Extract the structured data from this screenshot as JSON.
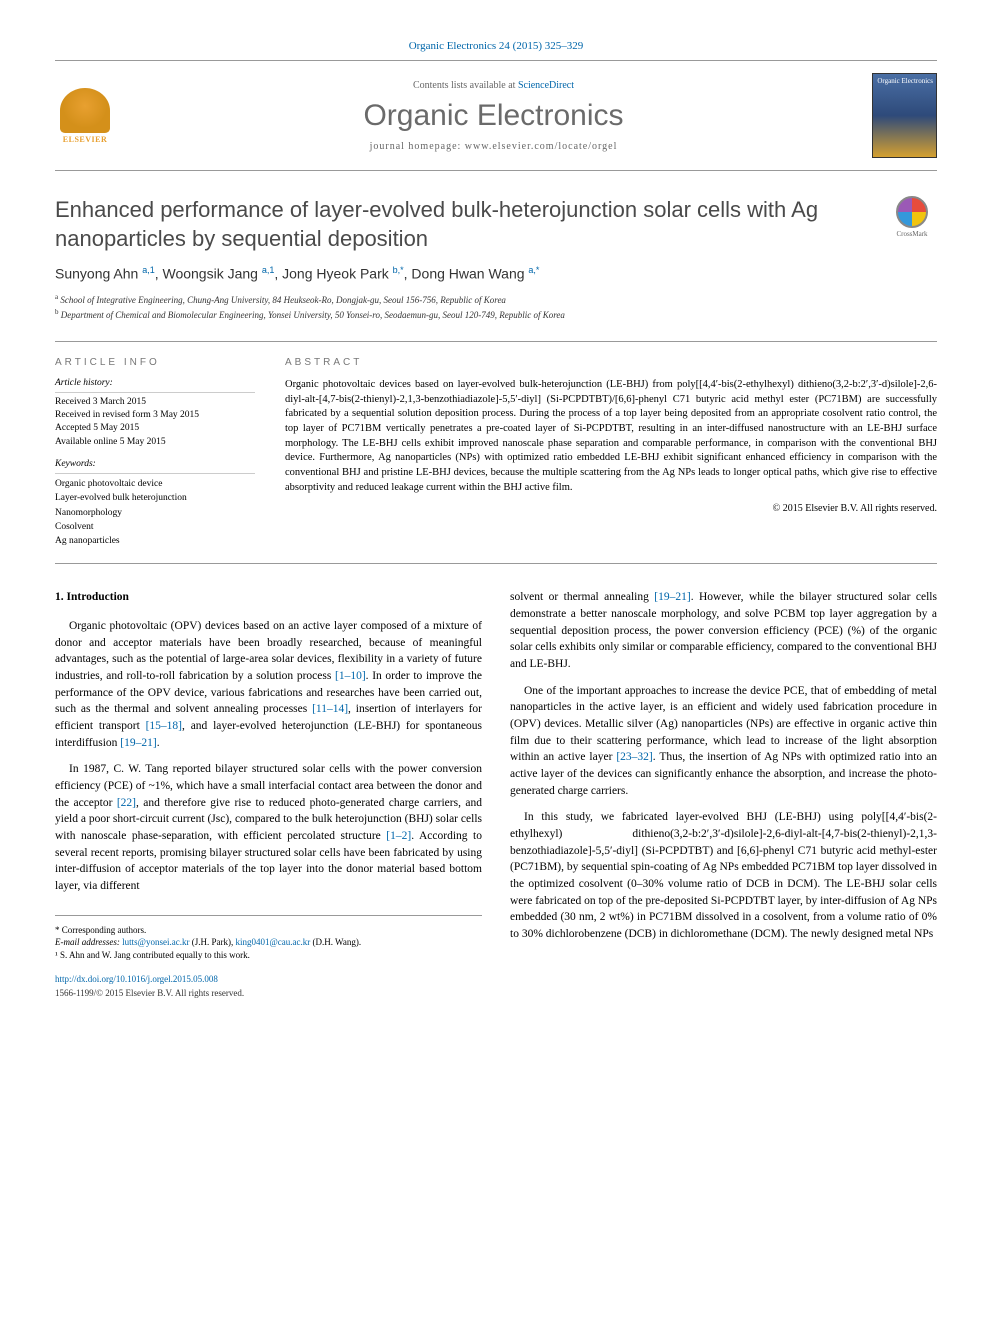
{
  "citation": "Organic Electronics 24 (2015) 325–329",
  "header": {
    "contents_prefix": "Contents lists available at ",
    "contents_link": "ScienceDirect",
    "journal_name": "Organic Electronics",
    "homepage": "journal homepage: www.elsevier.com/locate/orgel",
    "elsevier_label": "ELSEVIER",
    "cover_label": "Organic Electronics"
  },
  "crossmark": "CrossMark",
  "title": "Enhanced performance of layer-evolved bulk-heterojunction solar cells with Ag nanoparticles by sequential deposition",
  "authors_html": "Sunyong Ahn <sup>a,1</sup>, Woongsik Jang <sup>a,1</sup>, Jong Hyeok Park <sup>b,*</sup>, Dong Hwan Wang <sup>a,*</sup>",
  "affiliations": {
    "a": "School of Integrative Engineering, Chung-Ang University, 84 Heukseok-Ro, Dongjak-gu, Seoul 156-756, Republic of Korea",
    "b": "Department of Chemical and Biomolecular Engineering, Yonsei University, 50 Yonsei-ro, Seodaemun-gu, Seoul 120-749, Republic of Korea"
  },
  "info": {
    "heading": "ARTICLE INFO",
    "history_label": "Article history:",
    "history": [
      "Received 3 March 2015",
      "Received in revised form 3 May 2015",
      "Accepted 5 May 2015",
      "Available online 5 May 2015"
    ],
    "keywords_label": "Keywords:",
    "keywords": [
      "Organic photovoltaic device",
      "Layer-evolved bulk heterojunction",
      "Nanomorphology",
      "Cosolvent",
      "Ag nanoparticles"
    ]
  },
  "abstract": {
    "heading": "ABSTRACT",
    "text": "Organic photovoltaic devices based on layer-evolved bulk-heterojunction (LE-BHJ) from poly[[4,4′-bis(2-ethylhexyl) dithieno(3,2-b:2′,3′-d)silole]-2,6-diyl-alt-[4,7-bis(2-thienyl)-2,1,3-benzothiadiazole]-5,5′-diyl] (Si-PCPDTBT)/[6,6]-phenyl C71 butyric acid methyl ester (PC71BM) are successfully fabricated by a sequential solution deposition process. During the process of a top layer being deposited from an appropriate cosolvent ratio control, the top layer of PC71BM vertically penetrates a pre-coated layer of Si-PCPDTBT, resulting in an inter-diffused nanostructure with an LE-BHJ surface morphology. The LE-BHJ cells exhibit improved nanoscale phase separation and comparable performance, in comparison with the conventional BHJ device. Furthermore, Ag nanoparticles (NPs) with optimized ratio embedded LE-BHJ exhibit significant enhanced efficiency in comparison with the conventional BHJ and pristine LE-BHJ devices, because the multiple scattering from the Ag NPs leads to longer optical paths, which give rise to effective absorptivity and reduced leakage current within the BHJ active film.",
    "copyright": "© 2015 Elsevier B.V. All rights reserved."
  },
  "body": {
    "section_heading": "1. Introduction",
    "left_paragraphs": [
      "Organic photovoltaic (OPV) devices based on an active layer composed of a mixture of donor and acceptor materials have been broadly researched, because of meaningful advantages, such as the potential of large-area solar devices, flexibility in a variety of future industries, and roll-to-roll fabrication by a solution process [1–10]. In order to improve the performance of the OPV device, various fabrications and researches have been carried out, such as the thermal and solvent annealing processes [11–14], insertion of interlayers for efficient transport [15–18], and layer-evolved heterojunction (LE-BHJ) for spontaneous interdiffusion [19–21].",
      "In 1987, C. W. Tang reported bilayer structured solar cells with the power conversion efficiency (PCE) of ~1%, which have a small interfacial contact area between the donor and the acceptor [22], and therefore give rise to reduced photo-generated charge carriers, and yield a poor short-circuit current (Jsc), compared to the bulk heterojunction (BHJ) solar cells with nanoscale phase-separation, with efficient percolated structure [1–2]. According to several recent reports, promising bilayer structured solar cells have been fabricated by using inter-diffusion of acceptor materials of the top layer into the donor material based bottom layer, via different"
    ],
    "right_paragraphs": [
      "solvent or thermal annealing [19–21]. However, while the bilayer structured solar cells demonstrate a better nanoscale morphology, and solve PCBM top layer aggregation by a sequential deposition process, the power conversion efficiency (PCE) (%) of the organic solar cells exhibits only similar or comparable efficiency, compared to the conventional BHJ and LE-BHJ.",
      "One of the important approaches to increase the device PCE, that of embedding of metal nanoparticles in the active layer, is an efficient and widely used fabrication procedure in (OPV) devices. Metallic silver (Ag) nanoparticles (NPs) are effective in organic active thin film due to their scattering performance, which lead to increase of the light absorption within an active layer [23–32]. Thus, the insertion of Ag NPs with optimized ratio into an active layer of the devices can significantly enhance the absorption, and increase the photo-generated charge carriers.",
      "In this study, we fabricated layer-evolved BHJ (LE-BHJ) using poly[[4,4′-bis(2-ethylhexyl) dithieno(3,2-b:2′,3′-d)silole]-2,6-diyl-alt-[4,7-bis(2-thienyl)-2,1,3-benzothiadiazole]-5,5′-diyl] (Si-PCPDTBT) and [6,6]-phenyl C71 butyric acid methyl-ester (PC71BM), by sequential spin-coating of Ag NPs embedded PC71BM top layer dissolved in the optimized cosolvent (0–30% volume ratio of DCB in DCM). The LE-BHJ solar cells were fabricated on top of the pre-deposited Si-PCPDTBT layer, by inter-diffusion of Ag NPs embedded (30 nm, 2 wt%) in PC71BM dissolved in a cosolvent, from a volume ratio of 0% to 30% dichlorobenzene (DCB) in dichloromethane (DCM). The newly designed metal NPs"
    ]
  },
  "footer": {
    "corr_label": "* Corresponding authors.",
    "email_label": "E-mail addresses: ",
    "email1": "lutts@yonsei.ac.kr",
    "email1_who": " (J.H. Park), ",
    "email2": "king0401@cau.ac.kr",
    "email2_who": " (D.H. Wang).",
    "note1": "¹ S. Ahn and W. Jang contributed equally to this work.",
    "doi": "http://dx.doi.org/10.1016/j.orgel.2015.05.008",
    "issn": "1566-1199/© 2015 Elsevier B.V. All rights reserved."
  },
  "colors": {
    "link": "#0066aa",
    "heading_gray": "#4a4a4a",
    "label_gray": "#777777",
    "border": "#999999",
    "elsevier_orange": "#e8a030"
  }
}
